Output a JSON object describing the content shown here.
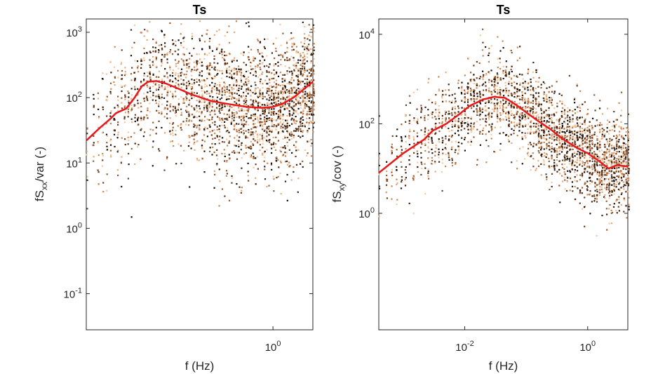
{
  "chart_data": [
    {
      "type": "scatter",
      "title": "Ts",
      "xlabel_main": "f (Hz)",
      "ylabel": {
        "base": "fS",
        "sub": "xx",
        "rest": "/var (-)"
      },
      "x_scale": "log",
      "y_scale": "log",
      "xlim": [
        0.025,
        2.2
      ],
      "ylim": [
        0.028,
        1600
      ],
      "xticks": [
        {
          "value": 1,
          "base": "10",
          "exp": "0"
        }
      ],
      "yticks": [
        {
          "value": 0.1,
          "base": "10",
          "exp": "-1"
        },
        {
          "value": 1,
          "base": "10",
          "exp": "0"
        },
        {
          "value": 10,
          "base": "10",
          "exp": "1"
        },
        {
          "value": 100,
          "base": "10",
          "exp": "2"
        },
        {
          "value": 1000,
          "base": "10",
          "exp": "3"
        }
      ],
      "scatter_colors": [
        "#1a0e08",
        "#3b2212",
        "#6b3b1c",
        "#9c5a2e",
        "#c98550",
        "#e8a87a",
        "#f5c9a0"
      ],
      "line_color": "#e8191a",
      "median_line": [
        {
          "x": 0.025,
          "y": 22
        },
        {
          "x": 0.033,
          "y": 35
        },
        {
          "x": 0.04,
          "y": 47
        },
        {
          "x": 0.045,
          "y": 58
        },
        {
          "x": 0.055,
          "y": 68
        },
        {
          "x": 0.065,
          "y": 100
        },
        {
          "x": 0.075,
          "y": 150
        },
        {
          "x": 0.085,
          "y": 175
        },
        {
          "x": 0.1,
          "y": 180
        },
        {
          "x": 0.12,
          "y": 165
        },
        {
          "x": 0.15,
          "y": 140
        },
        {
          "x": 0.2,
          "y": 112
        },
        {
          "x": 0.3,
          "y": 88
        },
        {
          "x": 0.45,
          "y": 78
        },
        {
          "x": 0.6,
          "y": 72
        },
        {
          "x": 0.8,
          "y": 70
        },
        {
          "x": 1.0,
          "y": 72
        },
        {
          "x": 1.2,
          "y": 80
        },
        {
          "x": 1.5,
          "y": 100
        },
        {
          "x": 1.8,
          "y": 130
        },
        {
          "x": 2.2,
          "y": 175
        }
      ]
    },
    {
      "type": "scatter",
      "title": "Ts",
      "xlabel_main": "f (Hz)",
      "ylabel": {
        "base": "fS",
        "sub": "xy",
        "rest": "/cov (-)"
      },
      "x_scale": "log",
      "y_scale": "log",
      "xlim": [
        0.0004,
        4.5
      ],
      "ylim": [
        0.0025,
        22000
      ],
      "xticks": [
        {
          "value": 0.01,
          "base": "10",
          "exp": "-2"
        },
        {
          "value": 1,
          "base": "10",
          "exp": "0"
        }
      ],
      "yticks": [
        {
          "value": 1,
          "base": "10",
          "exp": "0"
        },
        {
          "value": 100,
          "base": "10",
          "exp": "2"
        },
        {
          "value": 10000,
          "base": "10",
          "exp": "4"
        }
      ],
      "scatter_colors": [
        "#1a0e08",
        "#3b2212",
        "#6b3b1c",
        "#9c5a2e",
        "#c98550",
        "#e8a87a",
        "#f5c9a0"
      ],
      "line_color": "#e8191a",
      "median_line": [
        {
          "x": 0.0004,
          "y": 8
        },
        {
          "x": 0.001,
          "y": 22
        },
        {
          "x": 0.0022,
          "y": 45
        },
        {
          "x": 0.003,
          "y": 70
        },
        {
          "x": 0.005,
          "y": 100
        },
        {
          "x": 0.008,
          "y": 160
        },
        {
          "x": 0.012,
          "y": 250
        },
        {
          "x": 0.02,
          "y": 350
        },
        {
          "x": 0.03,
          "y": 400
        },
        {
          "x": 0.045,
          "y": 380
        },
        {
          "x": 0.07,
          "y": 260
        },
        {
          "x": 0.1,
          "y": 180
        },
        {
          "x": 0.15,
          "y": 120
        },
        {
          "x": 0.25,
          "y": 75
        },
        {
          "x": 0.4,
          "y": 45
        },
        {
          "x": 0.7,
          "y": 28
        },
        {
          "x": 1.0,
          "y": 22
        },
        {
          "x": 1.5,
          "y": 15
        },
        {
          "x": 2.2,
          "y": 10
        },
        {
          "x": 3.0,
          "y": 12
        },
        {
          "x": 4.5,
          "y": 11
        }
      ]
    }
  ]
}
